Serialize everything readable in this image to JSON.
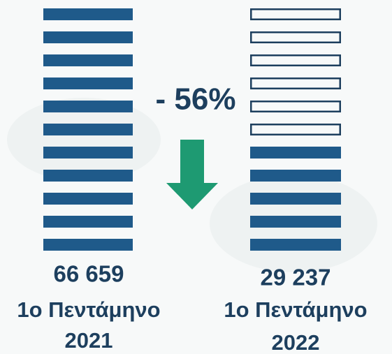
{
  "chart_data": {
    "type": "pictogram",
    "values": [
      66659,
      29237
    ],
    "value_labels": [
      "66 659",
      "29 237"
    ],
    "periods": [
      "1ο Πεντάμηνο",
      "1ο Πεντάμηνο"
    ],
    "years": [
      "2021",
      "2022"
    ],
    "change": "- 56%",
    "color": "#1f5a8a",
    "outline_color": "#1d3f5e",
    "arrow_color": "#1e9a72"
  }
}
